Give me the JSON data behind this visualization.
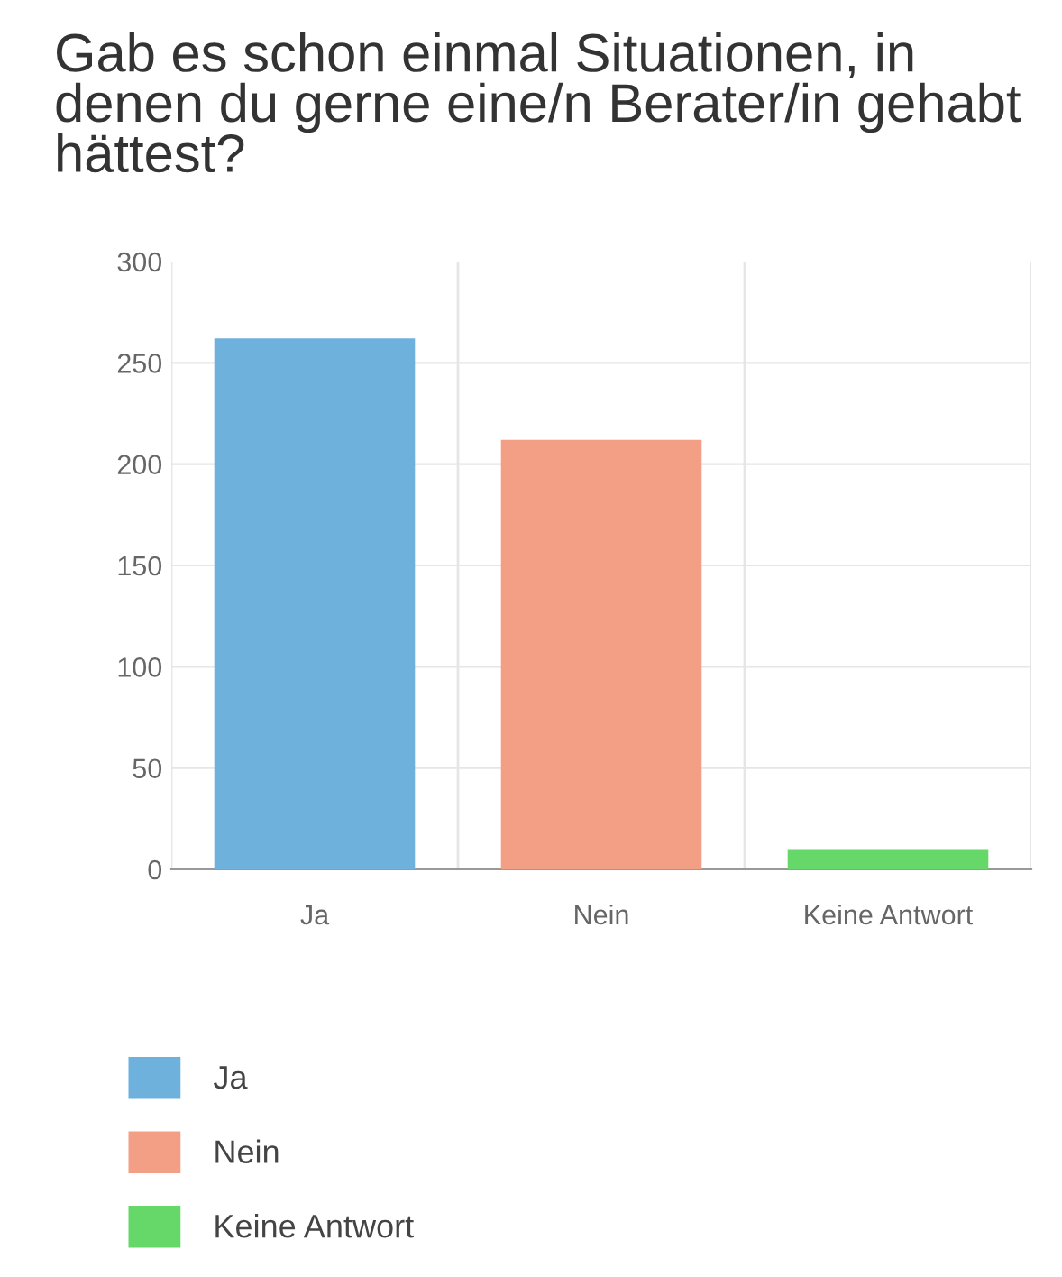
{
  "chart_data": {
    "type": "bar",
    "title": "Gab es schon einmal Situationen, in denen du gerne eine/n Berater/in gehabt hättest?",
    "categories": [
      "Ja",
      "Nein",
      "Keine Antwort"
    ],
    "series": [
      {
        "name": "Ja",
        "color": "#6fb1dd",
        "values": [
          262,
          null,
          null
        ]
      },
      {
        "name": "Nein",
        "color": "#f29f85",
        "values": [
          null,
          212,
          null
        ]
      },
      {
        "name": "Keine Antwort",
        "color": "#66d86a",
        "values": [
          null,
          null,
          10
        ]
      }
    ],
    "ylim": [
      0,
      300
    ],
    "yticks": [
      0,
      50,
      100,
      150,
      200,
      250,
      300
    ],
    "grid": true,
    "legend": "bottom left"
  }
}
